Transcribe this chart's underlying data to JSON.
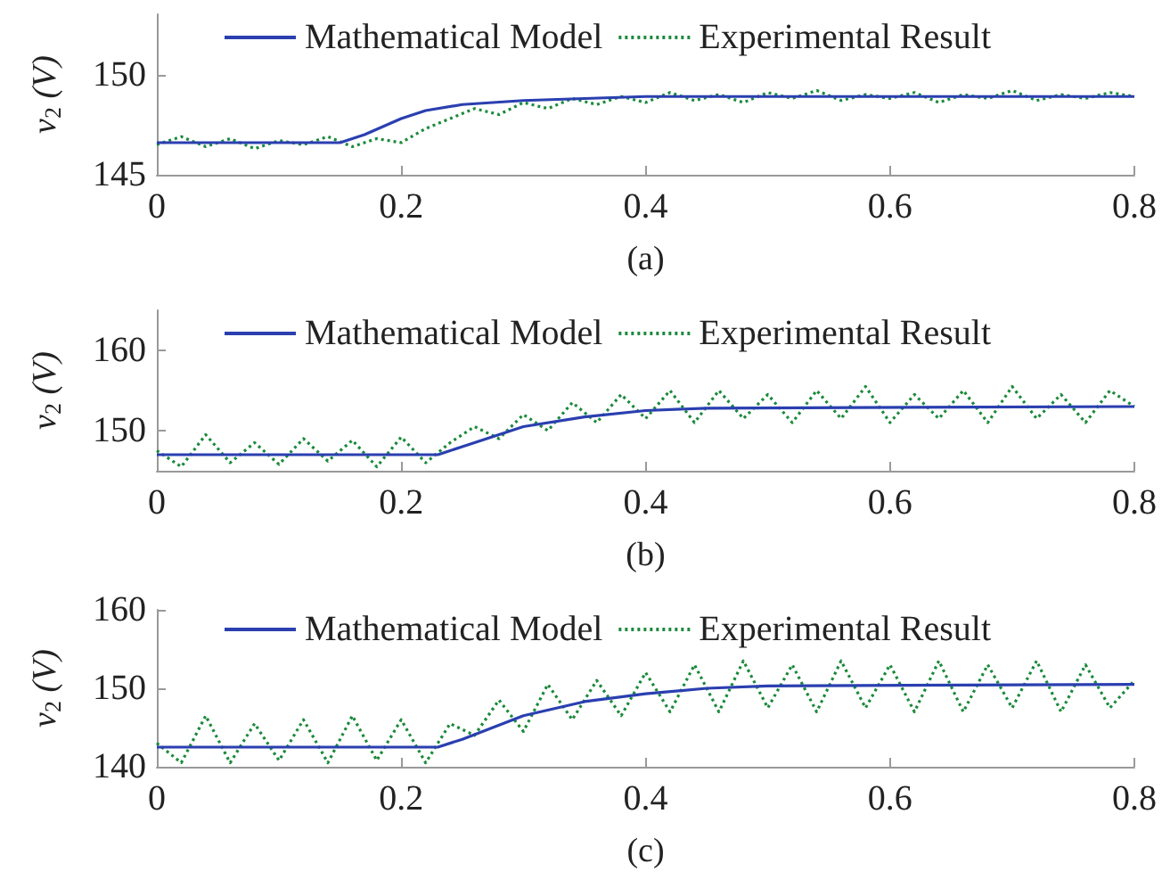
{
  "chart_data": [
    {
      "type": "line",
      "xlabel": "(a)",
      "ylabel": "v$_{2}$ (V)",
      "xlim": [
        0,
        0.8
      ],
      "xticks": [
        0,
        0.2,
        0.4,
        0.6,
        0.8
      ],
      "ylim": [
        145,
        153
      ],
      "yticks": [
        145,
        150
      ],
      "legend": "top",
      "grid": false,
      "marker": "none",
      "x": [
        0,
        0.02,
        0.04,
        0.06,
        0.08,
        0.1,
        0.12,
        0.14,
        0.16,
        0.18,
        0.2,
        0.22,
        0.24,
        0.26,
        0.28,
        0.3,
        0.32,
        0.34,
        0.36,
        0.38,
        0.4,
        0.42,
        0.44,
        0.46,
        0.48,
        0.5,
        0.52,
        0.54,
        0.56,
        0.58,
        0.6,
        0.62,
        0.64,
        0.66,
        0.68,
        0.7,
        0.72,
        0.74,
        0.76,
        0.78,
        0.8
      ],
      "series": [
        {
          "name": "Mathematical Model",
          "color": "#2a3fb0",
          "line_style": "solid",
          "x": [
            0,
            0.15,
            0.17,
            0.2,
            0.22,
            0.25,
            0.3,
            0.35,
            0.4,
            0.8
          ],
          "values": [
            146.6,
            146.6,
            147.0,
            147.8,
            148.2,
            148.5,
            148.7,
            148.8,
            148.9,
            148.9
          ]
        },
        {
          "name": "Experimental Result",
          "color": "#1a8a3a",
          "line_style": "dotted",
          "values": [
            146.5,
            146.9,
            146.4,
            146.8,
            146.3,
            146.7,
            146.5,
            146.9,
            146.4,
            146.8,
            146.6,
            147.3,
            147.8,
            148.3,
            148.0,
            148.6,
            148.3,
            148.8,
            148.5,
            148.9,
            148.6,
            149.1,
            148.7,
            149.0,
            148.6,
            149.1,
            148.8,
            149.2,
            148.7,
            149.0,
            148.8,
            149.1,
            148.6,
            149.0,
            148.8,
            149.2,
            148.7,
            149.0,
            148.8,
            149.1,
            148.9
          ]
        }
      ]
    },
    {
      "type": "line",
      "xlabel": "(b)",
      "ylabel": "v$_{2}$ (V)",
      "xlim": [
        0,
        0.8
      ],
      "xticks": [
        0,
        0.2,
        0.4,
        0.6,
        0.8
      ],
      "ylim": [
        145,
        165
      ],
      "yticks": [
        150,
        160
      ],
      "legend": "top",
      "grid": false,
      "marker": "none",
      "x": [
        0,
        0.02,
        0.04,
        0.06,
        0.08,
        0.1,
        0.12,
        0.14,
        0.16,
        0.18,
        0.2,
        0.22,
        0.24,
        0.26,
        0.28,
        0.3,
        0.32,
        0.34,
        0.36,
        0.38,
        0.4,
        0.42,
        0.44,
        0.46,
        0.48,
        0.5,
        0.52,
        0.54,
        0.56,
        0.58,
        0.6,
        0.62,
        0.64,
        0.66,
        0.68,
        0.7,
        0.72,
        0.74,
        0.76,
        0.78,
        0.8
      ],
      "series": [
        {
          "name": "Mathematical Model",
          "color": "#2a3fb0",
          "line_style": "solid",
          "x": [
            0,
            0.23,
            0.25,
            0.3,
            0.35,
            0.4,
            0.45,
            0.8
          ],
          "values": [
            147,
            147,
            148,
            150.5,
            151.7,
            152.5,
            152.8,
            153
          ]
        },
        {
          "name": "Experimental Result",
          "color": "#1a8a3a",
          "line_style": "dotted",
          "values": [
            147.5,
            145.5,
            149.5,
            146,
            148.5,
            145.8,
            149,
            146.2,
            148.8,
            145.5,
            149.2,
            146,
            148.5,
            150.5,
            149,
            152,
            150,
            153.5,
            151,
            154.5,
            151.5,
            155,
            151,
            155,
            151.5,
            154.5,
            151,
            155,
            151.5,
            155.5,
            151,
            154.5,
            151.5,
            155,
            151,
            155.5,
            151.5,
            154.5,
            151,
            155,
            153
          ]
        }
      ]
    },
    {
      "type": "line",
      "xlabel": "(c)",
      "ylabel": "v$_{2}$ (V)",
      "xlim": [
        0,
        0.8
      ],
      "xticks": [
        0,
        0.2,
        0.4,
        0.6,
        0.8
      ],
      "ylim": [
        140,
        160
      ],
      "yticks": [
        140,
        150,
        160
      ],
      "legend": "top",
      "grid": false,
      "marker": "none",
      "x": [
        0,
        0.02,
        0.04,
        0.06,
        0.08,
        0.1,
        0.12,
        0.14,
        0.16,
        0.18,
        0.2,
        0.22,
        0.24,
        0.26,
        0.28,
        0.3,
        0.32,
        0.34,
        0.36,
        0.38,
        0.4,
        0.42,
        0.44,
        0.46,
        0.48,
        0.5,
        0.52,
        0.54,
        0.56,
        0.58,
        0.6,
        0.62,
        0.64,
        0.66,
        0.68,
        0.7,
        0.72,
        0.74,
        0.76,
        0.78,
        0.8
      ],
      "series": [
        {
          "name": "Mathematical Model",
          "color": "#2a3fb0",
          "line_style": "solid",
          "x": [
            0,
            0.23,
            0.25,
            0.3,
            0.35,
            0.4,
            0.45,
            0.5,
            0.8
          ],
          "values": [
            142.5,
            142.5,
            143.5,
            146.5,
            148.3,
            149.3,
            150,
            150.3,
            150.5
          ]
        },
        {
          "name": "Experimental Result",
          "color": "#1a8a3a",
          "line_style": "dotted",
          "values": [
            143,
            140.5,
            146.5,
            140.5,
            145.5,
            140.8,
            146,
            140.5,
            146.5,
            140.8,
            146,
            140.5,
            145.5,
            144,
            148.5,
            144.5,
            150.5,
            146,
            151,
            146.5,
            152,
            147,
            153,
            147,
            153.5,
            147.5,
            153,
            147,
            153.5,
            147.5,
            153,
            147,
            153.5,
            147,
            153,
            147.5,
            153.5,
            147,
            153,
            147.5,
            151
          ]
        }
      ]
    }
  ]
}
